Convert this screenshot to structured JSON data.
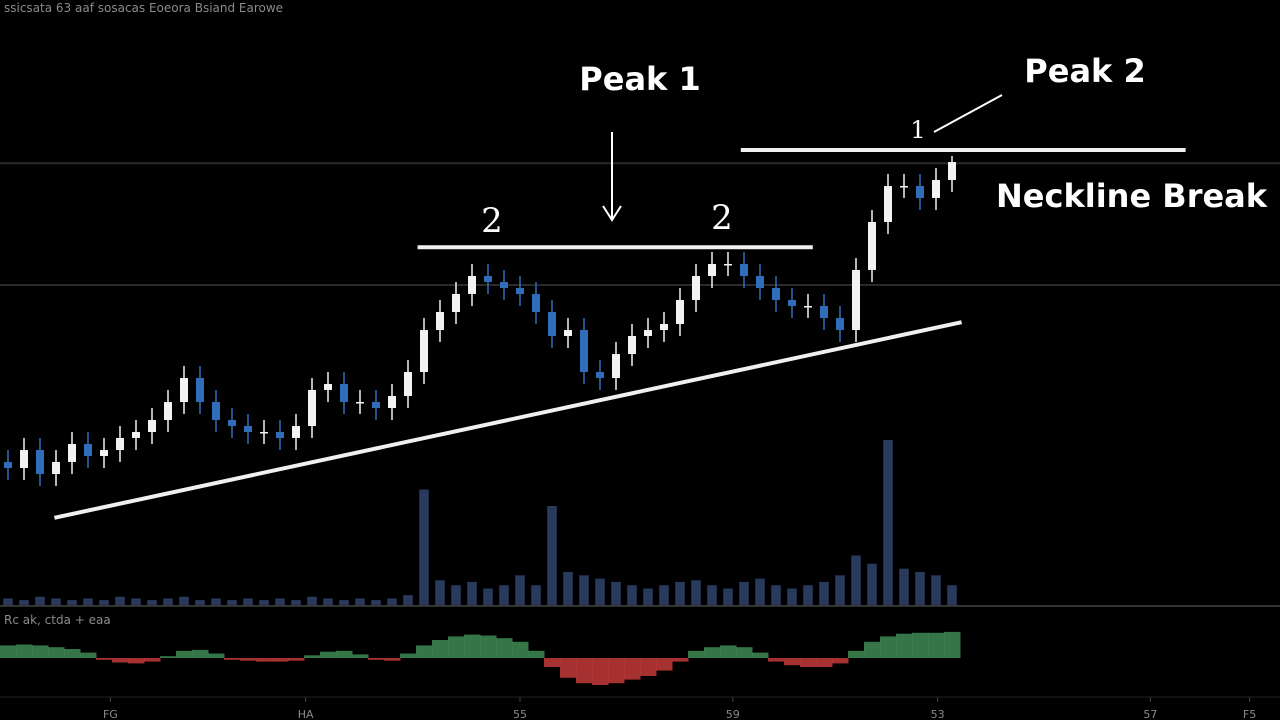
{
  "chart_data": {
    "type": "candlestick",
    "header": "ssicsata 63 aaf sosacas Eoeora Bsiand Earowe",
    "indicator_label": "Rc ak, ctda + eaa",
    "xlim": [
      -0.5,
      79.5
    ],
    "xticks": [
      {
        "value": 6.4,
        "label": "FG"
      },
      {
        "value": 18.6,
        "label": "HA"
      },
      {
        "value": 32,
        "label": "55"
      },
      {
        "value": 45.3,
        "label": "59"
      },
      {
        "value": 58.1,
        "label": "53"
      },
      {
        "value": 71.4,
        "label": "57"
      },
      {
        "value": 77.6,
        "label": "F5"
      }
    ],
    "ylim": [
      0,
      100
    ],
    "grid": true,
    "grid_levels": [
      72.8,
      52.5
    ],
    "up_color": "#f2f2f2",
    "down_color": "#2f6db8",
    "open": [
      23,
      22,
      25,
      21,
      23,
      26,
      24,
      25,
      27,
      28,
      30,
      33,
      37,
      33,
      30,
      29,
      28,
      28,
      27,
      29,
      35,
      36,
      33,
      33,
      32,
      34,
      38,
      45,
      48,
      51,
      54,
      53,
      52,
      51,
      48,
      44,
      45,
      38,
      37,
      41,
      44,
      45,
      46,
      50,
      54,
      56,
      56,
      54,
      52,
      50,
      49,
      49,
      47,
      45,
      55,
      63,
      69,
      69,
      67,
      70
    ],
    "high": [
      25,
      27,
      27,
      25,
      28,
      28,
      27,
      29,
      30,
      32,
      35,
      39,
      39,
      35,
      32,
      31,
      30,
      30,
      31,
      37,
      38,
      38,
      35,
      35,
      36,
      40,
      47,
      50,
      53,
      56,
      56,
      55,
      54,
      53,
      50,
      47,
      47,
      40,
      43,
      46,
      47,
      48,
      52,
      56,
      58,
      58,
      58,
      56,
      54,
      52,
      51,
      51,
      49,
      57,
      65,
      71,
      71,
      71,
      72,
      74
    ],
    "low": [
      20,
      20,
      19,
      19,
      21,
      22,
      22,
      23,
      25,
      26,
      28,
      31,
      31,
      28,
      27,
      26,
      26,
      25,
      25,
      27,
      33,
      31,
      31,
      30,
      30,
      32,
      36,
      43,
      46,
      49,
      51,
      50,
      49,
      46,
      42,
      42,
      36,
      35,
      35,
      39,
      42,
      43,
      44,
      48,
      52,
      54,
      52,
      50,
      48,
      47,
      47,
      45,
      43,
      43,
      53,
      61,
      67,
      65,
      65,
      68
    ],
    "close": [
      22,
      25,
      21,
      23,
      26,
      24,
      25,
      27,
      28,
      30,
      33,
      37,
      33,
      30,
      29,
      28,
      28,
      27,
      29,
      35,
      36,
      33,
      33,
      32,
      34,
      38,
      45,
      48,
      51,
      54,
      53,
      52,
      51,
      48,
      44,
      45,
      38,
      37,
      41,
      44,
      45,
      46,
      50,
      54,
      56,
      56,
      54,
      52,
      50,
      49,
      49,
      47,
      45,
      55,
      63,
      69,
      69,
      67,
      70,
      73
    ],
    "volume": {
      "ylim": [
        0,
        100
      ],
      "color": "#2a3a5c",
      "values": [
        4,
        3,
        5,
        4,
        3,
        4,
        3,
        5,
        4,
        3,
        4,
        5,
        3,
        4,
        3,
        4,
        3,
        4,
        3,
        5,
        4,
        3,
        4,
        3,
        4,
        6,
        70,
        15,
        12,
        14,
        10,
        12,
        18,
        12,
        60,
        20,
        18,
        16,
        14,
        12,
        10,
        12,
        14,
        15,
        12,
        10,
        14,
        16,
        12,
        10,
        12,
        14,
        18,
        30,
        25,
        100,
        22,
        20,
        18,
        12
      ]
    },
    "oscillator": {
      "ylim": [
        -40,
        40
      ],
      "pos_color": "#3f8a55",
      "neg_color": "#c23a3a",
      "values": [
        14,
        15,
        14,
        12,
        10,
        6,
        -2,
        -5,
        -6,
        -4,
        2,
        8,
        9,
        5,
        -2,
        -3,
        -4,
        -4,
        -3,
        3,
        7,
        8,
        4,
        -2,
        -3,
        5,
        14,
        20,
        24,
        26,
        25,
        22,
        18,
        8,
        -10,
        -22,
        -28,
        -30,
        -28,
        -24,
        -20,
        -14,
        -4,
        8,
        12,
        14,
        12,
        6,
        -4,
        -8,
        -10,
        -10,
        -6,
        8,
        18,
        24,
        27,
        28,
        28,
        29
      ]
    },
    "lines": [
      {
        "x": [
          25.6,
          50.3
        ],
        "y": [
          58.8,
          58.8
        ]
      },
      {
        "x": [
          45.8,
          73.6
        ],
        "y": [
          75,
          75
        ]
      },
      {
        "x": [
          2.9,
          59.6
        ],
        "y": [
          13.7,
          46.3
        ]
      }
    ],
    "annotations": [
      "Peak 1",
      "Peak 2",
      "Neckline Break",
      "2",
      "2",
      "1"
    ]
  }
}
